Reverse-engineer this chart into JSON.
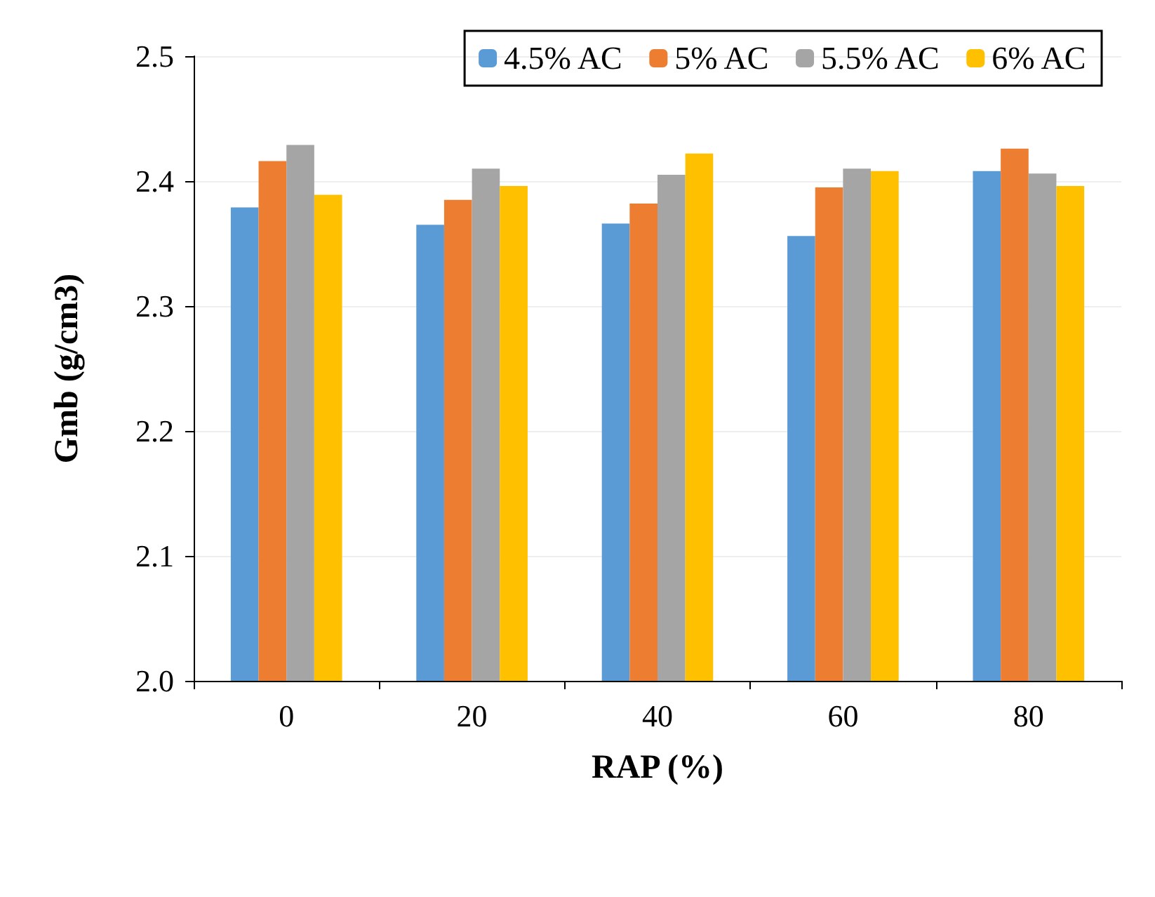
{
  "chart_data": {
    "type": "bar",
    "xlabel": "RAP (%)",
    "ylabel": "Gmb (g/cm3)",
    "categories": [
      "0",
      "20",
      "40",
      "60",
      "80"
    ],
    "series": [
      {
        "name": "4.5% AC",
        "color": "#5b9bd5",
        "values": [
          2.379,
          2.365,
          2.366,
          2.356,
          2.408
        ]
      },
      {
        "name": "5% AC",
        "color": "#ed7d31",
        "values": [
          2.416,
          2.385,
          2.382,
          2.395,
          2.426
        ]
      },
      {
        "name": "5.5% AC",
        "color": "#a5a5a5",
        "values": [
          2.429,
          2.41,
          2.405,
          2.41,
          2.406
        ]
      },
      {
        "name": "6% AC",
        "color": "#ffc000",
        "values": [
          2.389,
          2.396,
          2.422,
          2.408,
          2.396
        ]
      }
    ],
    "ylim": [
      2.0,
      2.5
    ],
    "yticks": [
      {
        "value": 2.0,
        "label": "2.0"
      },
      2.1,
      2.2,
      2.3,
      2.4,
      2.5
    ],
    "grid": "y",
    "legend": "top right"
  }
}
